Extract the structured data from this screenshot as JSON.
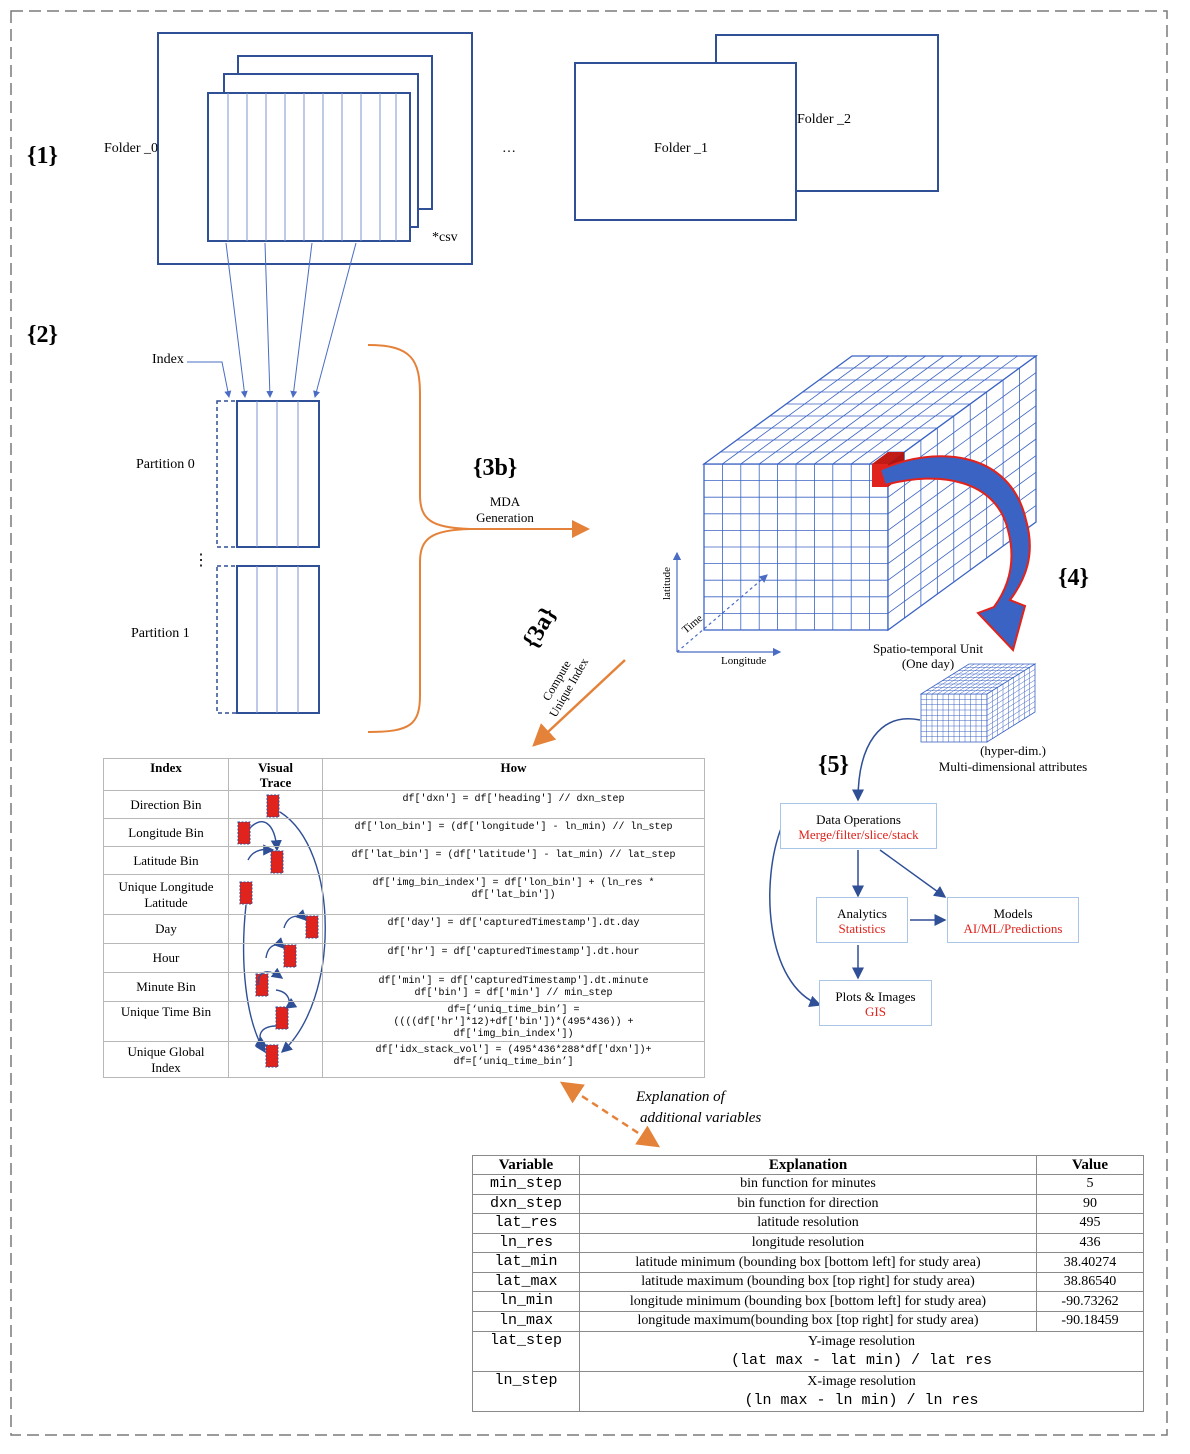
{
  "steps": {
    "s1": "{1}",
    "s2": "{2}",
    "s3b": "{3b}",
    "s3a": "{3a}",
    "s4": "{4}",
    "s5": "{5}"
  },
  "section1": {
    "folder0": "Folder _0",
    "csv": "*csv",
    "ellipsis": "…",
    "folder1": "Folder _1",
    "folder2": "Folder _2"
  },
  "section2": {
    "index": "Index",
    "partition0": "Partition 0",
    "vdots": "⋮",
    "partition1": "Partition 1"
  },
  "mda": {
    "line1": "MDA",
    "line2": "Generation"
  },
  "compute": {
    "line1": "Compute",
    "line2": "Unique Index"
  },
  "cube": {
    "latitude": "latitude",
    "time": "Time",
    "longitude": "Longitude",
    "unit_line1": "Spatio-temporal Unit",
    "unit_line2": "(One day)"
  },
  "hyper": {
    "line1": "(hyper-dim.)",
    "line2": "Multi-dimensional attributes"
  },
  "ops": {
    "data_title": "Data Operations",
    "data_sub": "Merge/filter/slice/stack",
    "analytics_title": "Analytics",
    "analytics_sub": "Statistics",
    "models_title": "Models",
    "models_sub": "AI/ML/Predictions",
    "plots_title": "Plots & Images",
    "plots_sub": "GIS",
    "accent": "#e0231c"
  },
  "index_table": {
    "headers": [
      "Index",
      "Visual\nTrace",
      "How"
    ],
    "rows": [
      {
        "name": "Direction Bin",
        "how": "df['dxn'] = df['heading'] // dxn_step"
      },
      {
        "name": "Longitude Bin",
        "how": "df['lon_bin'] = (df['longitude'] - ln_min) // ln_step"
      },
      {
        "name": "Latitude Bin",
        "how": "df['lat_bin'] = (df['latitude'] - lat_min) // lat_step"
      },
      {
        "name": "Unique Longitude\nLatitude",
        "how": "df['img_bin_index'] = df['lon_bin'] + (ln_res *\ndf['lat_bin'])"
      },
      {
        "name": "Day",
        "how": "df['day'] = df['capturedTimestamp'].dt.day"
      },
      {
        "name": "Hour",
        "how": "df['hr'] = df['capturedTimestamp'].dt.hour"
      },
      {
        "name": "Minute Bin",
        "how": "df['min'] = df['capturedTimestamp'].dt.minute\ndf['bin'] = df['min'] // min_step"
      },
      {
        "name": "Unique Time Bin",
        "how": "df=[‘uniq_time_bin’] =\n((((df['hr']*12)+df['bin'])*(495*436)) +\ndf['img_bin_index'])"
      },
      {
        "name": "Unique Global\nIndex",
        "how": "df['idx_stack_vol'] = (495*436*288*df['dxn'])+\ndf=[‘uniq_time_bin’]"
      }
    ]
  },
  "explanation": {
    "line1": "Explanation of",
    "line2": "additional  variables"
  },
  "vars_table": {
    "headers": [
      "Variable",
      "Explanation",
      "Value"
    ],
    "rows": [
      {
        "var": "min_step",
        "exp": "bin function for minutes",
        "val": "5"
      },
      {
        "var": "dxn_step",
        "exp": "bin function for direction",
        "val": "90"
      },
      {
        "var": "lat_res",
        "exp": "latitude resolution",
        "val": "495"
      },
      {
        "var": "ln_res",
        "exp": "longitude resolution",
        "val": "436"
      },
      {
        "var": "lat_min",
        "exp": "latitude minimum (bounding box [bottom left] for study area)",
        "val": "38.40274"
      },
      {
        "var": "lat_max",
        "exp": "latitude maximum (bounding box [top right]  for study area)",
        "val": "38.86540"
      },
      {
        "var": "ln_min",
        "exp": "longitude minimum (bounding box [bottom left] for study area)",
        "val": "-90.73262"
      },
      {
        "var": "ln_max",
        "exp": "longitude maximum(bounding box [top right] for study area)",
        "val": "-90.18459"
      }
    ],
    "formula_rows": [
      {
        "var": "lat_step",
        "exp": "Y-image resolution",
        "formula": "(lat max - lat min) / lat res"
      },
      {
        "var": "ln_step",
        "exp": "X-image resolution",
        "formula": "(ln max - ln min) / ln res"
      }
    ]
  },
  "colors": {
    "line": "#2f4f96",
    "orange": "#e5823a",
    "red": "#e0231c",
    "grid": "#3b63c4"
  }
}
